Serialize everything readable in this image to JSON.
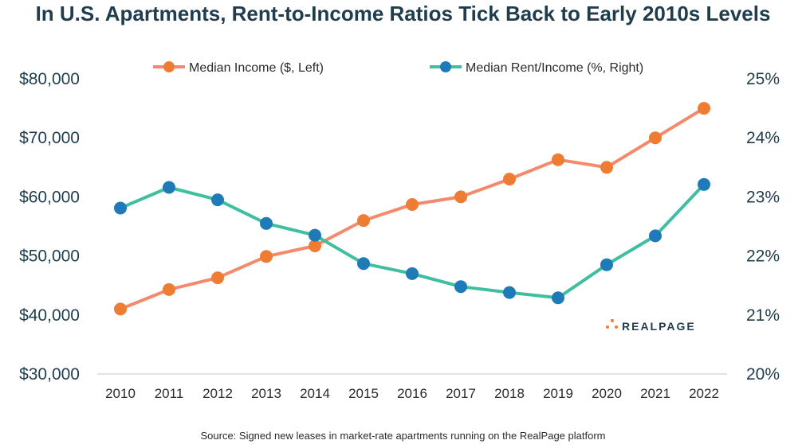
{
  "chart_data": {
    "type": "line",
    "title": "In U.S. Apartments, Rent-to-Income Ratios Tick Back to Early 2010s Levels",
    "source": "Source: Signed new leases in market-rate apartments running on the RealPage platform",
    "brand": "REALPAGE",
    "x": [
      "2010",
      "2011",
      "2012",
      "2013",
      "2014",
      "2015",
      "2016",
      "2017",
      "2018",
      "2019",
      "2020",
      "2021",
      "2022"
    ],
    "y_left": {
      "ylim": [
        30000,
        80000
      ],
      "ticks": [
        80000,
        70000,
        60000,
        50000,
        40000,
        30000
      ],
      "tick_labels": [
        "$80,000",
        "$70,000",
        "$60,000",
        "$50,000",
        "$40,000",
        "$30,000"
      ]
    },
    "y_right": {
      "ylim": [
        20,
        25
      ],
      "ticks": [
        25,
        24,
        23,
        22,
        21,
        20
      ],
      "tick_labels": [
        "25%",
        "24%",
        "23%",
        "22%",
        "21%",
        "20%"
      ]
    },
    "legend_position": "top",
    "grid": false,
    "series": [
      {
        "name": "Median Income ($, Left)",
        "axis": "left",
        "color": "#f4896b",
        "marker_color": "#ee7d33",
        "values": [
          41000,
          44300,
          46300,
          49900,
          51700,
          56000,
          58700,
          60000,
          63000,
          66300,
          65000,
          70000,
          75000
        ]
      },
      {
        "name": "Median Rent/Income (%, Right)",
        "axis": "right",
        "color": "#3fbf9f",
        "marker_color": "#1e7bb8",
        "values": [
          22.81,
          23.16,
          22.95,
          22.55,
          22.35,
          21.87,
          21.7,
          21.48,
          21.38,
          21.29,
          21.85,
          22.34,
          23.21
        ]
      }
    ]
  }
}
